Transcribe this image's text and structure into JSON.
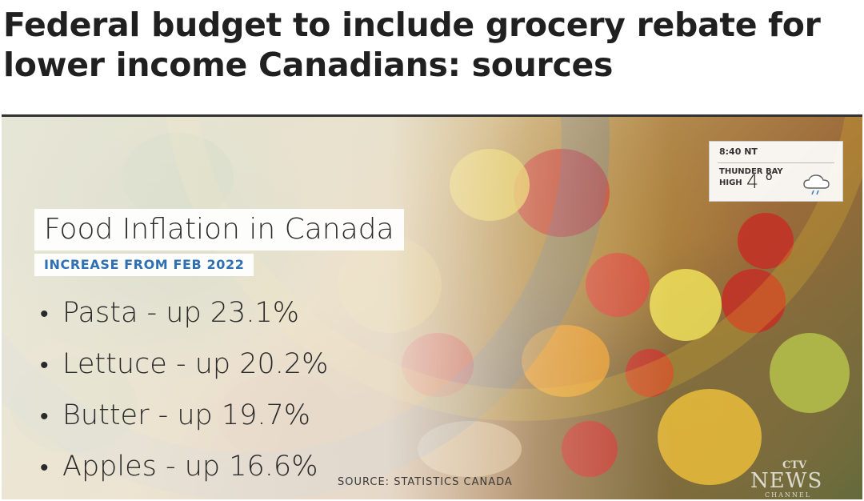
{
  "article": {
    "headline": "Federal budget to include grocery rebate for lower income Canadians: sources"
  },
  "graphic": {
    "title": "Food Inflation in Canada",
    "subtitle": "INCREASE FROM FEB 2022",
    "items": [
      {
        "bullet": "•",
        "text": "Pasta - up 23.1%"
      },
      {
        "bullet": "•",
        "text": "Lettuce - up 20.2%"
      },
      {
        "bullet": "•",
        "text": "Butter - up 19.7%"
      },
      {
        "bullet": "•",
        "text": "Apples - up 16.6%"
      }
    ],
    "source": "SOURCE:  STATISTICS CANADA"
  },
  "weather": {
    "time": "8:40 NT",
    "city": "THUNDER BAY",
    "high_label": "HIGH",
    "temperature": "4",
    "degree": "o",
    "icon": "rain-cloud-icon"
  },
  "logo": {
    "ctv": "CTV",
    "news": "NEWS",
    "channel": "CHANNEL"
  },
  "colors": {
    "accent": "#2f6fb3",
    "headline": "#202020"
  }
}
